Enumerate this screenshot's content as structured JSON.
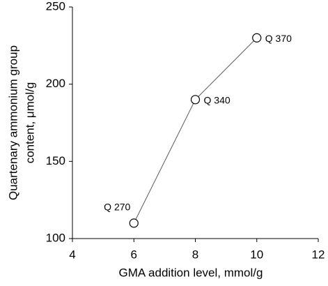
{
  "chart_data": {
    "type": "line",
    "xlabel": "GMA addition level, mmol/g",
    "ylabel": [
      "Quartenary ammonium group",
      "content, μmol/g"
    ],
    "x": [
      6,
      8,
      10
    ],
    "series": [
      {
        "values": [
          110,
          190,
          230
        ],
        "color": "#595959"
      }
    ],
    "point_labels": [
      "Q 270",
      "Q 340",
      "Q 370"
    ],
    "xlim": [
      4,
      12
    ],
    "xticks": [
      4,
      6,
      8,
      10,
      12
    ],
    "ylim": [
      100,
      250
    ],
    "yticks": [
      100,
      150,
      200,
      250
    ]
  }
}
